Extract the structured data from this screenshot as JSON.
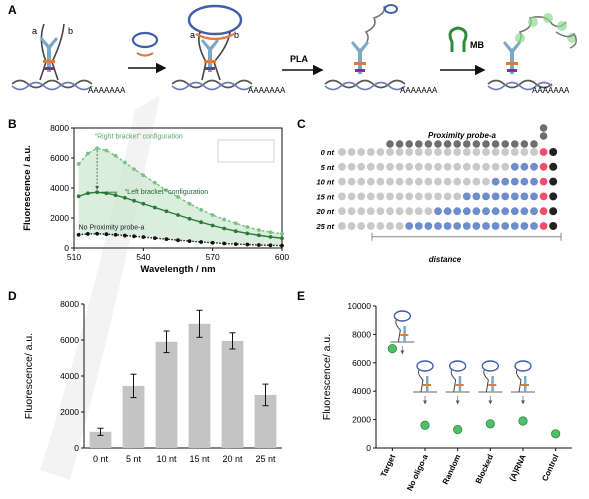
{
  "panels": {
    "A": {
      "letter": "A",
      "probe_left": "a",
      "probe_right": "b",
      "poly_a": "AAAAAAA",
      "step1": "PLA",
      "step2": "MB"
    },
    "B": {
      "letter": "B",
      "annotations": [
        "“Right bracket” configuration",
        "“Left bracket” configuration",
        "No Proximity probe-a"
      ]
    },
    "C": {
      "letter": "C",
      "header": "Proximity probe-a",
      "rows": [
        "0 nt",
        "5 nt",
        "10 nt",
        "15 nt",
        "20 nt",
        "25 nt"
      ],
      "blue_counts": [
        0,
        3,
        5,
        8,
        11,
        14
      ],
      "xlabel": "distance"
    },
    "D": {
      "letter": "D"
    },
    "E": {
      "letter": "E",
      "dot_labels": [
        "Target",
        "No oligo-a",
        "Random",
        "Blocked",
        "(A)RNA",
        "Control"
      ]
    }
  },
  "chart_data": [
    {
      "panel": "B",
      "type": "line",
      "xlabel": "Wavelength / nm",
      "ylabel": "Fluorescence / a.u.",
      "xlim": [
        510,
        600
      ],
      "ylim": [
        0,
        8000
      ],
      "xticks": [
        510,
        540,
        570,
        600
      ],
      "yticks": [
        0,
        2000,
        4000,
        6000,
        8000
      ],
      "x": [
        512,
        516,
        520,
        524,
        528,
        532,
        536,
        540,
        545,
        550,
        555,
        560,
        565,
        570,
        575,
        580,
        585,
        590,
        595,
        600
      ],
      "series": [
        {
          "color": "#79c184",
          "style": "dashed-marker",
          "values": [
            5600,
            6300,
            6650,
            6500,
            6150,
            5700,
            5250,
            4850,
            4350,
            3850,
            3400,
            2950,
            2550,
            2200,
            1900,
            1650,
            1400,
            1200,
            1050,
            950
          ]
        },
        {
          "color": "#2a7a35",
          "style": "solid-marker",
          "values": [
            3450,
            3650,
            3720,
            3650,
            3520,
            3350,
            3150,
            2950,
            2700,
            2450,
            2200,
            1950,
            1720,
            1500,
            1300,
            1120,
            970,
            850,
            740,
            650
          ]
        },
        {
          "color": "#111111",
          "style": "dotted-marker",
          "values": [
            880,
            940,
            950,
            920,
            880,
            830,
            780,
            730,
            660,
            590,
            520,
            460,
            400,
            350,
            300,
            260,
            230,
            200,
            180,
            160
          ]
        }
      ]
    },
    {
      "panel": "D",
      "type": "bar",
      "ylabel": "Fluorescence/ a.u.",
      "ylim": [
        0,
        8000
      ],
      "yticks": [
        0,
        2000,
        4000,
        6000,
        8000
      ],
      "categories": [
        "0 nt",
        "5 nt",
        "10 nt",
        "15 nt",
        "20 nt",
        "25 nt"
      ],
      "values": [
        900,
        3450,
        5900,
        6900,
        5950,
        2950
      ],
      "errors": [
        200,
        650,
        600,
        750,
        450,
        600
      ]
    },
    {
      "panel": "E",
      "type": "scatter",
      "ylabel": "Fluorescence/ a.u.",
      "ylim": [
        0,
        10000
      ],
      "yticks": [
        0,
        2000,
        4000,
        6000,
        8000,
        10000
      ],
      "categories": [
        "Target",
        "No oligo-a",
        "Random",
        "Blocked",
        "(A)RNA",
        "Control"
      ],
      "values": [
        7000,
        1600,
        1300,
        1700,
        1900,
        1000
      ]
    }
  ]
}
